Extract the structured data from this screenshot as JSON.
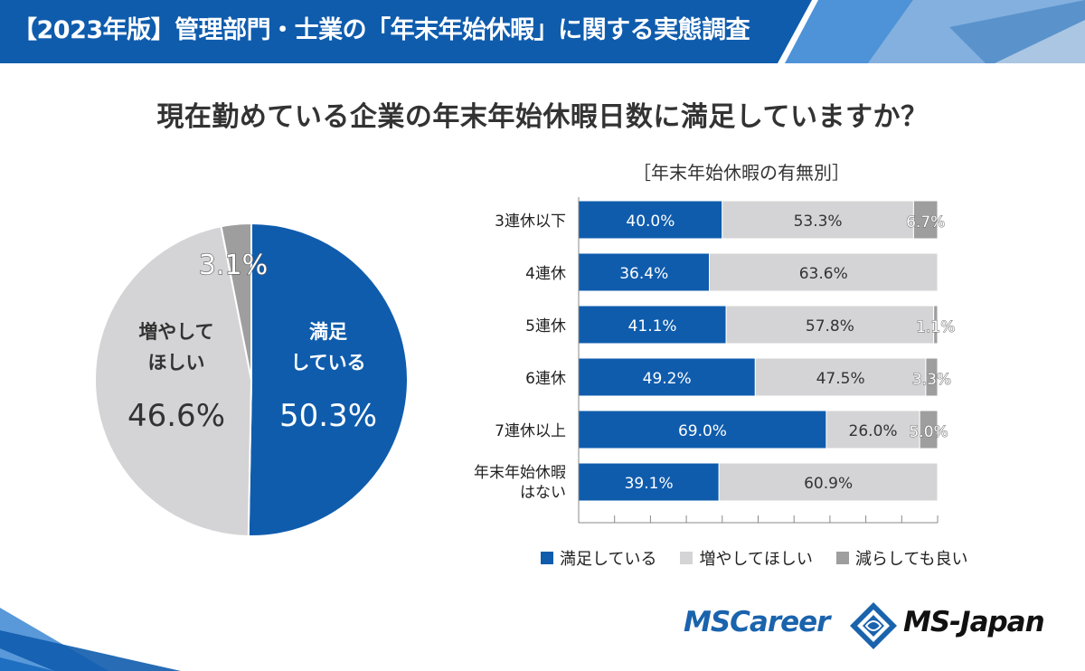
{
  "header": {
    "title": "【2023年版】管理部門・士業の「年末年始休暇」に関する実態調査"
  },
  "question": "現在勤めている企業の年末年始休暇日数に満足していますか？",
  "colors": {
    "brand_blue": "#0f5cad",
    "light_gray": "#d4d4d6",
    "dark_gray": "#9e9e9e"
  },
  "chart_data": [
    {
      "type": "pie",
      "slices": [
        {
          "label": "満足している",
          "value": 50.3,
          "value_label": "50.3%"
        },
        {
          "label": "増やしてほしい",
          "value": 46.6,
          "value_label": "46.6%"
        },
        {
          "label": "減らしても良い",
          "value": 3.1,
          "value_label": "3.1%"
        }
      ]
    },
    {
      "type": "bar",
      "orientation": "horizontal",
      "stacked": true,
      "subtitle": "［年末年始休暇の有無別］",
      "categories": [
        "3連休以下",
        "4連休",
        "5連休",
        "6連休",
        "7連休以上",
        "年末年始休暇はない"
      ],
      "series": [
        {
          "name": "満足している",
          "values": [
            40.0,
            36.4,
            41.1,
            49.2,
            69.0,
            39.1
          ]
        },
        {
          "name": "増やしてほしい",
          "values": [
            53.3,
            63.6,
            57.8,
            47.5,
            26.0,
            60.9
          ]
        },
        {
          "name": "減らしても良い",
          "values": [
            6.7,
            0,
            1.1,
            3.3,
            5.0,
            0
          ]
        }
      ],
      "xlim": [
        0,
        100
      ],
      "legend_position": "bottom"
    }
  ],
  "logos": {
    "mscareer": "MSCareer",
    "msjapan": "MS-Japan"
  }
}
